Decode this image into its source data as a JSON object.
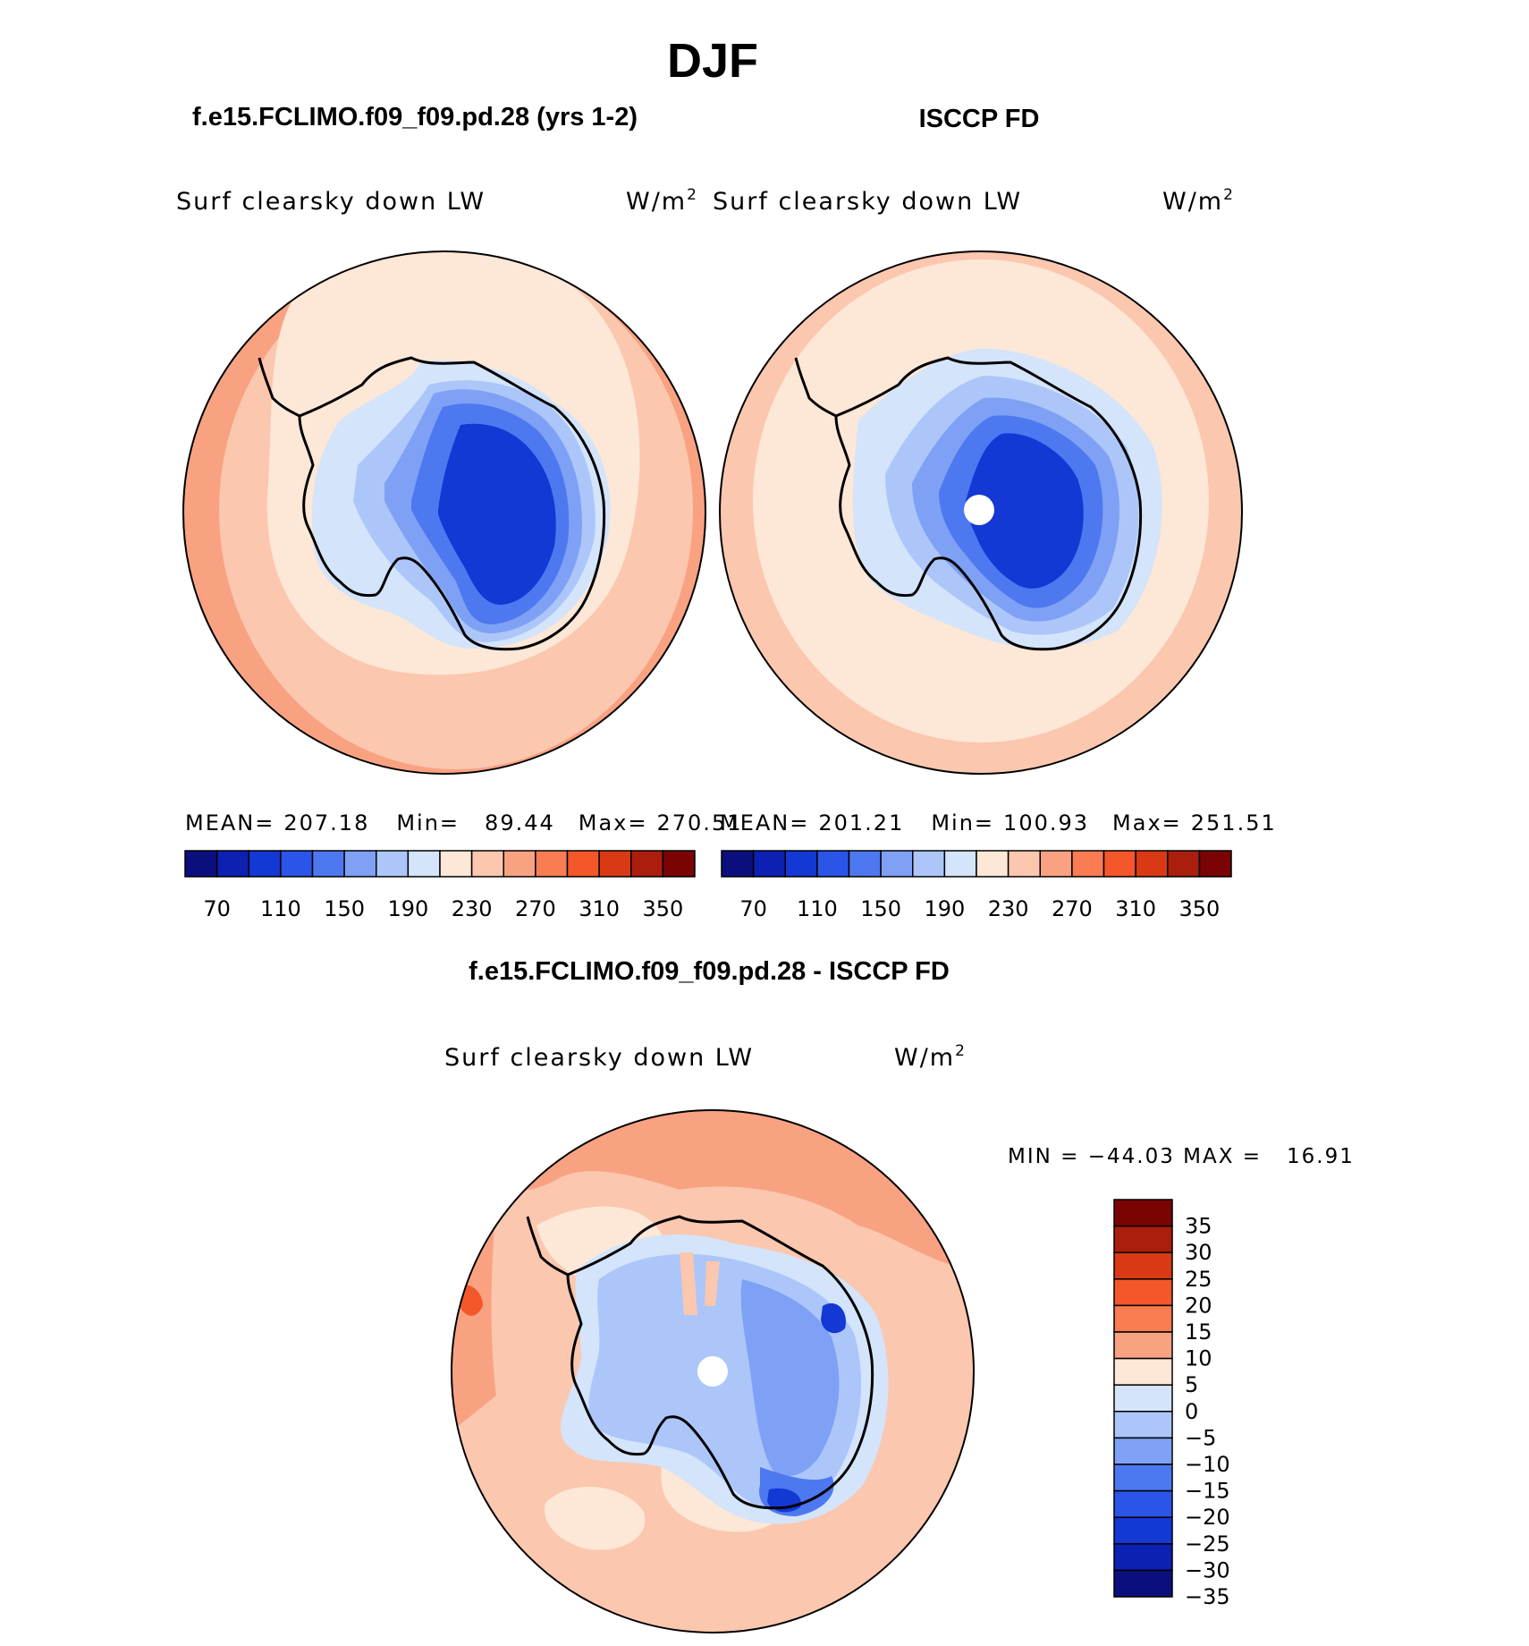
{
  "season": "DJF",
  "panels": {
    "model": {
      "case_title": "f.e15.FCLIMO.f09_f09.pd.28 (yrs 1-2)",
      "variable": "Surf clearsky down LW",
      "units": "W/m",
      "units_exp": "2",
      "stats": {
        "mean_label": "MEAN=",
        "mean": "207.18",
        "min_label": "Min=",
        "min": "89.44",
        "max_label": "Max=",
        "max": "270.51"
      }
    },
    "obs": {
      "case_title": "ISCCP FD",
      "variable": "Surf clearsky down LW",
      "units": "W/m",
      "units_exp": "2",
      "stats": {
        "mean_label": "MEAN=",
        "mean": "201.21",
        "min_label": "Min=",
        "min": "100.93",
        "max_label": "Max=",
        "max": "251.51"
      }
    },
    "diff": {
      "case_title": "f.e15.FCLIMO.f09_f09.pd.28 - ISCCP FD",
      "variable": "Surf clearsky down LW",
      "units": "W/m",
      "units_exp": "2",
      "minmax": "MIN = −44.03 MAX =   16.91"
    }
  },
  "colorbars": {
    "absolute": {
      "colors": [
        "#0b0f7e",
        "#0c20b2",
        "#1338d4",
        "#2b55e8",
        "#4d78f0",
        "#7ea1f5",
        "#acc6fa",
        "#d3e4fb",
        "#fde7d6",
        "#fbc7ae",
        "#f9a282",
        "#f97c52",
        "#f4572a",
        "#d93a15",
        "#ab1d0c",
        "#7a0404"
      ],
      "labels": [
        "70",
        "110",
        "150",
        "190",
        "230",
        "270",
        "310",
        "350"
      ]
    },
    "difference": {
      "colors": [
        "#7a0404",
        "#ab1d0c",
        "#d93a15",
        "#f4572a",
        "#f97c52",
        "#f9a282",
        "#fde7d6",
        "#d3e4fb",
        "#acc6fa",
        "#7ea1f5",
        "#4d78f0",
        "#2b55e8",
        "#1338d4",
        "#0c20b2",
        "#0b0f7e"
      ],
      "labels": [
        "35",
        "30",
        "25",
        "20",
        "15",
        "10",
        "5",
        "0",
        "−5",
        "−10",
        "−15",
        "−20",
        "−25",
        "−30",
        "−35"
      ]
    }
  },
  "map_colors": {
    "ocean_outer": "#fbb18f",
    "ocean_mid": "#fbc7ae",
    "ocean_inner": "#fde7d6",
    "coast_band": "#d3e4fb",
    "ice_1": "#acc6fa",
    "ice_2": "#7ea1f5",
    "ice_3": "#4d78f0",
    "ice_4": "#2b55e8",
    "ice_5": "#1338d4",
    "missing": "#ffffff"
  }
}
